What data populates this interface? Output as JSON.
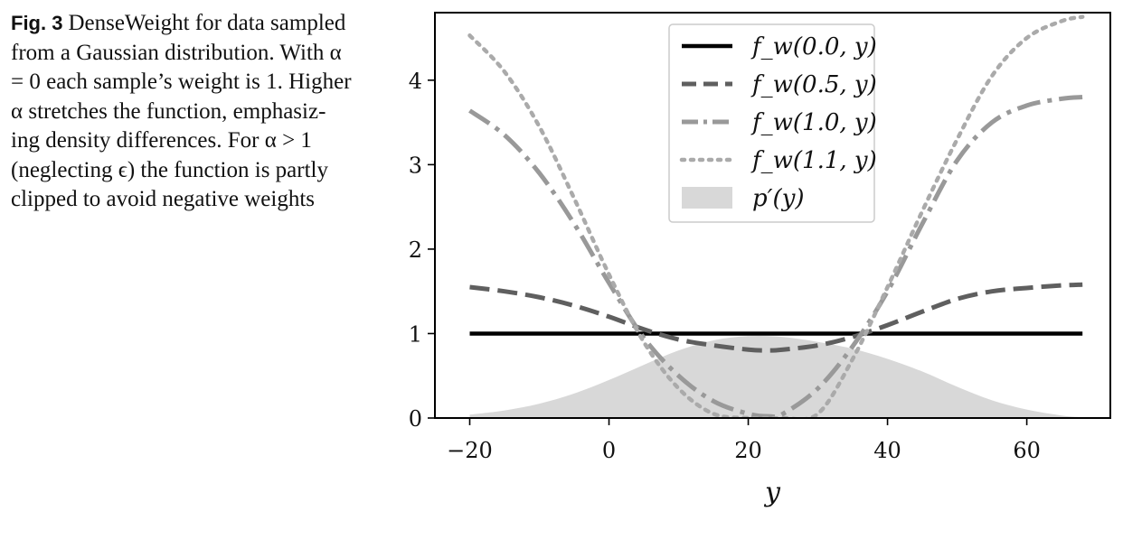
{
  "caption": {
    "label": "Fig. 3",
    "text": "DenseWeight for data sampled from a Gaussian distribution. With α = 0 each sample’s weight is 1. Higher α stretches the function, emphasiz- ing density differences. For α > 1 (neglecting ϵ) the function is partly clipped to avoid negative weights"
  },
  "chart_data": {
    "type": "line",
    "title": "",
    "xlabel": "y",
    "ylabel": "",
    "xlim": [
      -25,
      72
    ],
    "ylim": [
      0,
      4.8
    ],
    "xticks": [
      -20,
      0,
      20,
      40,
      60
    ],
    "xtick_labels": [
      "−20",
      "0",
      "20",
      "40",
      "60"
    ],
    "yticks": [
      0,
      1,
      2,
      3,
      4
    ],
    "ytick_labels": [
      "0",
      "1",
      "2",
      "3",
      "4"
    ],
    "grid": false,
    "legend_position": "top-center",
    "x": [
      -20,
      -15,
      -10,
      -5,
      0,
      5,
      10,
      15,
      20,
      23,
      25,
      30,
      35,
      40,
      45,
      50,
      55,
      60,
      65,
      68
    ],
    "series": [
      {
        "name": "f_w(0.0, y)",
        "style": "solid",
        "color": "#000000",
        "values": [
          1.0,
          1.0,
          1.0,
          1.0,
          1.0,
          1.0,
          1.0,
          1.0,
          1.0,
          1.0,
          1.0,
          1.0,
          1.0,
          1.0,
          1.0,
          1.0,
          1.0,
          1.0,
          1.0,
          1.0
        ]
      },
      {
        "name": "f_w(0.5, y)",
        "style": "dashed",
        "color": "#5f5f5f",
        "values": [
          1.55,
          1.5,
          1.43,
          1.33,
          1.2,
          1.05,
          0.93,
          0.86,
          0.81,
          0.8,
          0.81,
          0.86,
          0.96,
          1.1,
          1.26,
          1.41,
          1.5,
          1.54,
          1.57,
          1.58
        ]
      },
      {
        "name": "f_w(1.0, y)",
        "style": "dashdot",
        "color": "#999999",
        "values": [
          3.64,
          3.35,
          2.9,
          2.3,
          1.6,
          0.95,
          0.5,
          0.2,
          0.05,
          0.02,
          0.05,
          0.35,
          0.85,
          1.5,
          2.3,
          3.05,
          3.5,
          3.7,
          3.78,
          3.8
        ]
      },
      {
        "name": "f_w(1.1, y)",
        "style": "dotted",
        "color": "#aaaaaa",
        "values": [
          4.53,
          4.1,
          3.45,
          2.6,
          1.7,
          0.9,
          0.35,
          0.05,
          0.0,
          0.0,
          0.0,
          0.05,
          0.7,
          1.55,
          2.45,
          3.3,
          4.05,
          4.5,
          4.7,
          4.75
        ]
      }
    ],
    "area": {
      "name": "p′(y)",
      "color": "#d8d8d8",
      "x": [
        -20,
        -15,
        -10,
        -5,
        0,
        5,
        10,
        15,
        20,
        25,
        30,
        35,
        40,
        45,
        50,
        55,
        60,
        65,
        68
      ],
      "values": [
        0.04,
        0.09,
        0.17,
        0.29,
        0.45,
        0.63,
        0.8,
        0.92,
        0.97,
        0.96,
        0.9,
        0.82,
        0.7,
        0.55,
        0.37,
        0.21,
        0.1,
        0.03,
        0.01
      ]
    }
  }
}
